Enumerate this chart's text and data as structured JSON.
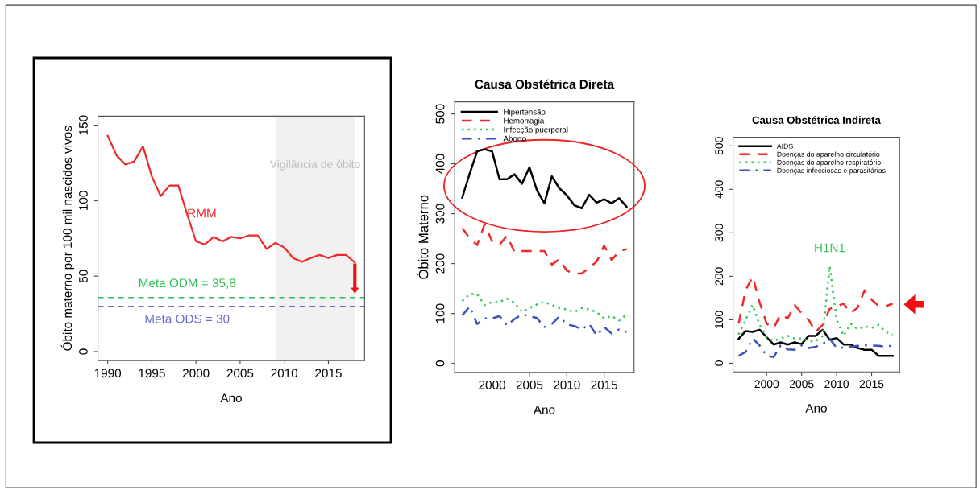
{
  "chart_data": [
    {
      "type": "line",
      "xlabel": "Ano",
      "ylabel": "Óbito materno por 100 mil nascidos vivos",
      "xlim": [
        1988.9,
        2019.1
      ],
      "ylim": [
        -6,
        156
      ],
      "xticks": [
        1990,
        1995,
        2000,
        2005,
        2010,
        2015
      ],
      "yticks": [
        0,
        50,
        100,
        150
      ],
      "grid": false,
      "legend": false,
      "x": [
        1990,
        1991,
        1992,
        1993,
        1994,
        1995,
        1996,
        1997,
        1998,
        1999,
        2000,
        2001,
        2002,
        2003,
        2004,
        2005,
        2006,
        2007,
        2008,
        2009,
        2010,
        2011,
        2012,
        2013,
        2014,
        2015,
        2016,
        2017,
        2018
      ],
      "series": [
        {
          "name": "RMM",
          "color": "#ee2a2a",
          "line_style": "solid",
          "values": [
            143,
            130,
            124,
            126,
            136,
            116,
            103,
            110,
            110,
            91,
            73,
            71,
            76,
            73,
            76,
            75,
            77,
            77,
            68,
            72,
            69,
            62,
            59.5,
            62,
            64,
            62,
            64,
            64,
            59
          ]
        }
      ],
      "ref_lines": [
        {
          "axis": "y",
          "value": 35.8,
          "label": "Meta ODM = 35,8",
          "color": "#2fbf5a",
          "line_style": "dashed"
        },
        {
          "axis": "y",
          "value": 30,
          "label": "Meta ODS = 30",
          "color": "#6a6ad0",
          "line_style": "dashed"
        }
      ],
      "bands": [
        {
          "axis": "x",
          "from": 2009,
          "to": 2018,
          "label": "Vigilância de óbito",
          "color": "#d8d8d8"
        }
      ]
    },
    {
      "type": "line",
      "title": "Causa Obstétrica Direta",
      "xlabel": "Ano",
      "ylabel": "Óbito Materno",
      "xlim": [
        1995.0,
        2019.0
      ],
      "ylim": [
        -18,
        524
      ],
      "xticks": [
        2000,
        2005,
        2010,
        2015
      ],
      "yticks": [
        0,
        100,
        200,
        300,
        400,
        500
      ],
      "grid": false,
      "legend": "top left",
      "x": [
        1996,
        1997,
        1998,
        1999,
        2000,
        2001,
        2002,
        2003,
        2004,
        2005,
        2006,
        2007,
        2008,
        2009,
        2010,
        2011,
        2012,
        2013,
        2014,
        2015,
        2016,
        2017,
        2018
      ],
      "series": [
        {
          "name": "Hipertensão",
          "color": "#000000",
          "line_style": "solid",
          "values": [
            332,
            380,
            425,
            429,
            425,
            369,
            369,
            379,
            360,
            393,
            347,
            321,
            375,
            351,
            337,
            317,
            311,
            338,
            322,
            329,
            321,
            331,
            314
          ]
        },
        {
          "name": "Hemorragia",
          "color": "#ee2a2a",
          "line_style": "dashed",
          "values": [
            271,
            251,
            237,
            279,
            245,
            238,
            256,
            223,
            225,
            225,
            225,
            225,
            198,
            209,
            186,
            180,
            180,
            192,
            204,
            236,
            207,
            225,
            229
          ]
        },
        {
          "name": "Infecção puerperal",
          "color": "#3cc45a",
          "line_style": "dotted",
          "values": [
            125,
            139,
            139,
            117,
            123,
            123,
            130,
            122,
            103,
            111,
            118,
            123,
            117,
            111,
            108,
            103,
            111,
            108,
            103,
            90,
            95,
            86,
            98
          ]
        },
        {
          "name": "Aborto",
          "color": "#3b50b8",
          "line_style": "dashdot",
          "values": [
            96,
            114,
            79,
            90,
            90,
            95,
            76,
            89,
            98,
            95,
            91,
            73,
            79,
            94,
            78,
            75,
            68,
            79,
            56,
            73,
            60,
            68,
            63
          ]
        }
      ]
    },
    {
      "type": "line",
      "title": "Causa Obstétrica Indireta",
      "xlabel": "Ano",
      "xlim": [
        1995.2,
        2019.0
      ],
      "ylim": [
        -20,
        520
      ],
      "xticks": [
        2000,
        2005,
        2010,
        2015
      ],
      "yticks": [
        0,
        100,
        200,
        300,
        400,
        500
      ],
      "grid": false,
      "legend": "top left",
      "annotations": [
        "H1N1"
      ],
      "x": [
        1996,
        1997,
        1998,
        1999,
        2000,
        2001,
        2002,
        2003,
        2004,
        2005,
        2006,
        2007,
        2008,
        2009,
        2010,
        2011,
        2012,
        2013,
        2014,
        2015,
        2016,
        2017,
        2018
      ],
      "series": [
        {
          "name": "AIDS",
          "color": "#000000",
          "line_style": "solid",
          "values": [
            56,
            74,
            72,
            77,
            60,
            43,
            48,
            43,
            48,
            44,
            63,
            63,
            77,
            54,
            58,
            43,
            43,
            35,
            31,
            31,
            17,
            17,
            17
          ]
        },
        {
          "name": "Doenças do aparelho circulatório",
          "color": "#ee2a2a",
          "line_style": "dashed",
          "values": [
            91,
            168,
            199,
            140,
            91,
            81,
            112,
            103,
            134,
            115,
            100,
            72,
            88,
            125,
            131,
            137,
            115,
            128,
            168,
            146,
            132,
            131,
            137
          ]
        },
        {
          "name": "Doenças do aparelho respiratório",
          "color": "#3cc45a",
          "line_style": "dotted",
          "values": [
            66,
            100,
            134,
            88,
            60,
            51,
            57,
            63,
            57,
            57,
            51,
            51,
            63,
            223,
            100,
            63,
            91,
            78,
            85,
            81,
            88,
            72,
            66
          ]
        },
        {
          "name": "Doenças infecciosas e parasitárias",
          "color": "#3b50b8",
          "line_style": "dashdot",
          "values": [
            17,
            26,
            57,
            41,
            17,
            14,
            41,
            32,
            31,
            41,
            35,
            38,
            44,
            57,
            35,
            36,
            38,
            40,
            41,
            41,
            40,
            38,
            41
          ]
        }
      ]
    }
  ]
}
